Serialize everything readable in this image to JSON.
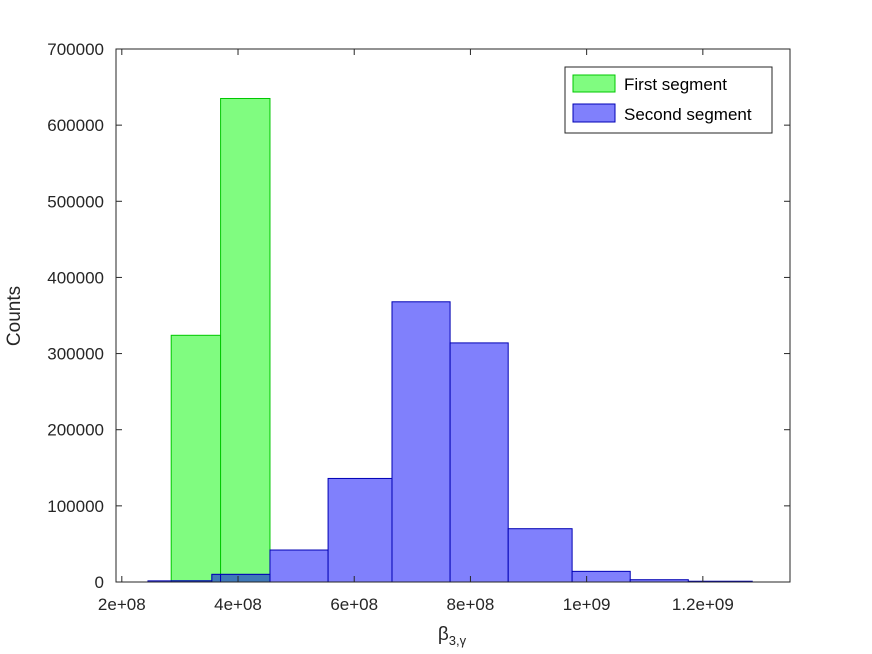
{
  "chart_data": {
    "type": "bar",
    "xlabel_main": "β",
    "xlabel_sub": "3,γ",
    "ylabel": "Counts",
    "xlim": [
      190000000,
      1350000000
    ],
    "ylim": [
      0,
      700000
    ],
    "xticks": [
      200000000,
      400000000,
      600000000,
      800000000,
      1000000000,
      1200000000
    ],
    "xtick_labels": [
      "2e+08",
      "4e+08",
      "6e+08",
      "8e+08",
      "1e+09",
      "1.2e+09"
    ],
    "yticks": [
      0,
      100000,
      200000,
      300000,
      400000,
      500000,
      600000,
      700000
    ],
    "ytick_labels": [
      "0",
      "100000",
      "200000",
      "300000",
      "400000",
      "500000",
      "600000",
      "700000"
    ],
    "legend_position": "top-right",
    "colors": {
      "first_fill": "#80fc80",
      "first_edge": "#00c800",
      "second_fill": "#8080fc",
      "second_edge": "#0000b4",
      "axis": "#262626"
    },
    "series": [
      {
        "name": "First segment",
        "bins": [
          {
            "x0": 285000000,
            "x1": 370000000,
            "value": 324000
          },
          {
            "x0": 370000000,
            "x1": 455000000,
            "value": 635000
          }
        ]
      },
      {
        "name": "Second segment",
        "bins": [
          {
            "x0": 245000000,
            "x1": 355000000,
            "value": 1500
          },
          {
            "x0": 355000000,
            "x1": 455000000,
            "value": 10000
          },
          {
            "x0": 455000000,
            "x1": 555000000,
            "value": 42000
          },
          {
            "x0": 555000000,
            "x1": 665000000,
            "value": 136000
          },
          {
            "x0": 665000000,
            "x1": 765000000,
            "value": 368000
          },
          {
            "x0": 765000000,
            "x1": 865000000,
            "value": 314000
          },
          {
            "x0": 865000000,
            "x1": 975000000,
            "value": 70000
          },
          {
            "x0": 975000000,
            "x1": 1075000000,
            "value": 14000
          },
          {
            "x0": 1075000000,
            "x1": 1175000000,
            "value": 3000
          },
          {
            "x0": 1175000000,
            "x1": 1285000000,
            "value": 1000
          }
        ]
      }
    ]
  }
}
